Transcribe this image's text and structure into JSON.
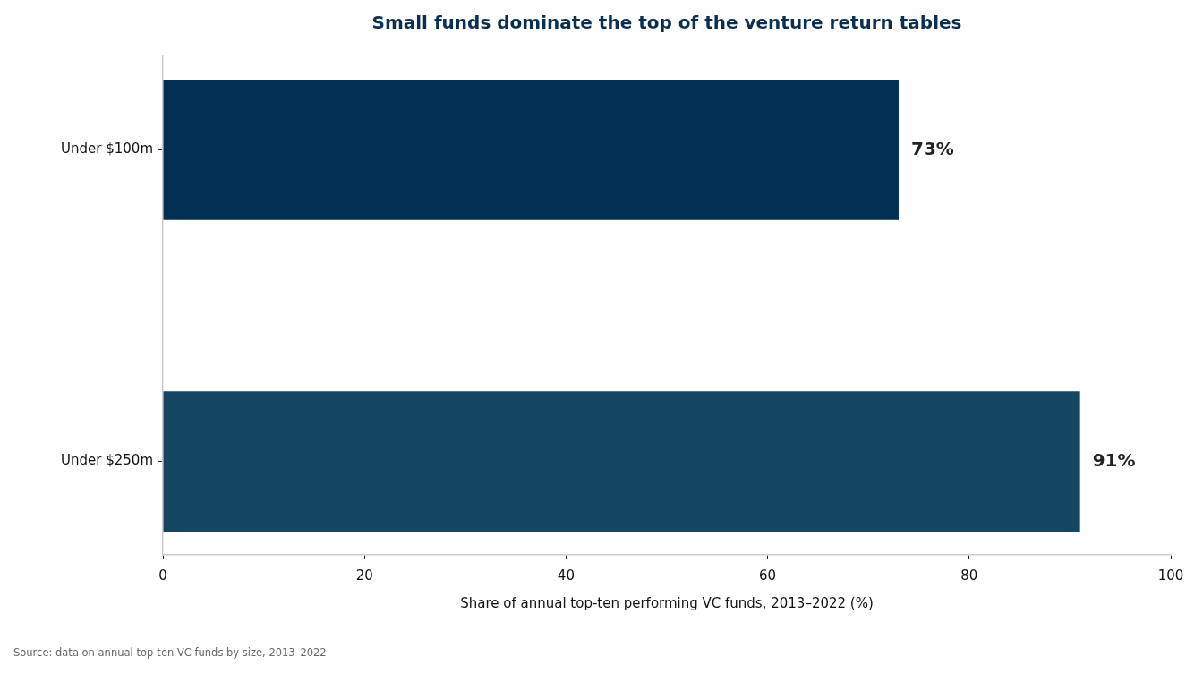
{
  "chart_data": {
    "type": "bar",
    "orientation": "horizontal",
    "title": "Small funds dominate the top of the venture return tables",
    "xlabel": "Share of annual top-ten performing VC funds, 2013–2022 (%)",
    "categories": [
      "Under $100m",
      "Under $250m"
    ],
    "values": [
      73,
      91
    ],
    "colors": [
      "#022f54",
      "#124661"
    ],
    "value_labels": [
      "73%",
      "91%"
    ],
    "xlim": [
      0,
      100
    ],
    "xticks": [
      0,
      20,
      40,
      60,
      80,
      100
    ],
    "grid": false,
    "legend": false,
    "annotations": [
      "Source: data on annual top-ten VC funds by size, 2013–2022"
    ]
  }
}
